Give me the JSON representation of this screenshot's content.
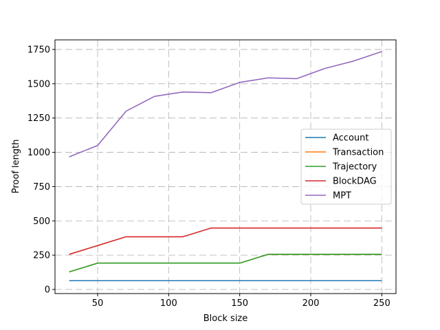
{
  "chart_data": {
    "type": "line",
    "title": "",
    "xlabel": "Block size",
    "ylabel": "Proof length",
    "xlim": [
      20,
      260
    ],
    "ylim": [
      -30,
      1820
    ],
    "xticks": [
      50,
      100,
      150,
      200,
      250
    ],
    "yticks": [
      0,
      250,
      500,
      750,
      1000,
      1250,
      1500,
      1750
    ],
    "grid": true,
    "grid_style": "dashed",
    "legend_position": "center-right",
    "x": [
      30,
      50,
      70,
      90,
      110,
      130,
      150,
      170,
      190,
      210,
      230,
      250
    ],
    "series": [
      {
        "name": "Account",
        "color": "#1f77b4",
        "values": [
          64,
          64,
          64,
          64,
          64,
          64,
          64,
          64,
          64,
          64,
          64,
          64
        ]
      },
      {
        "name": "Transaction",
        "color": "#ff7f0e",
        "values": [
          128,
          192,
          192,
          192,
          192,
          192,
          192,
          256,
          256,
          256,
          256,
          256
        ]
      },
      {
        "name": "Trajectory",
        "color": "#2ca02c",
        "values": [
          128,
          192,
          192,
          192,
          192,
          192,
          192,
          256,
          256,
          256,
          256,
          256
        ]
      },
      {
        "name": "BlockDAG",
        "color": "#d62728",
        "values": [
          256,
          320,
          384,
          384,
          384,
          448,
          448,
          448,
          448,
          448,
          448,
          448
        ]
      },
      {
        "name": "MPT",
        "color": "#9467bd",
        "values": [
          967,
          1050,
          1300,
          1408,
          1440,
          1435,
          1510,
          1543,
          1537,
          1612,
          1665,
          1735
        ]
      }
    ]
  }
}
